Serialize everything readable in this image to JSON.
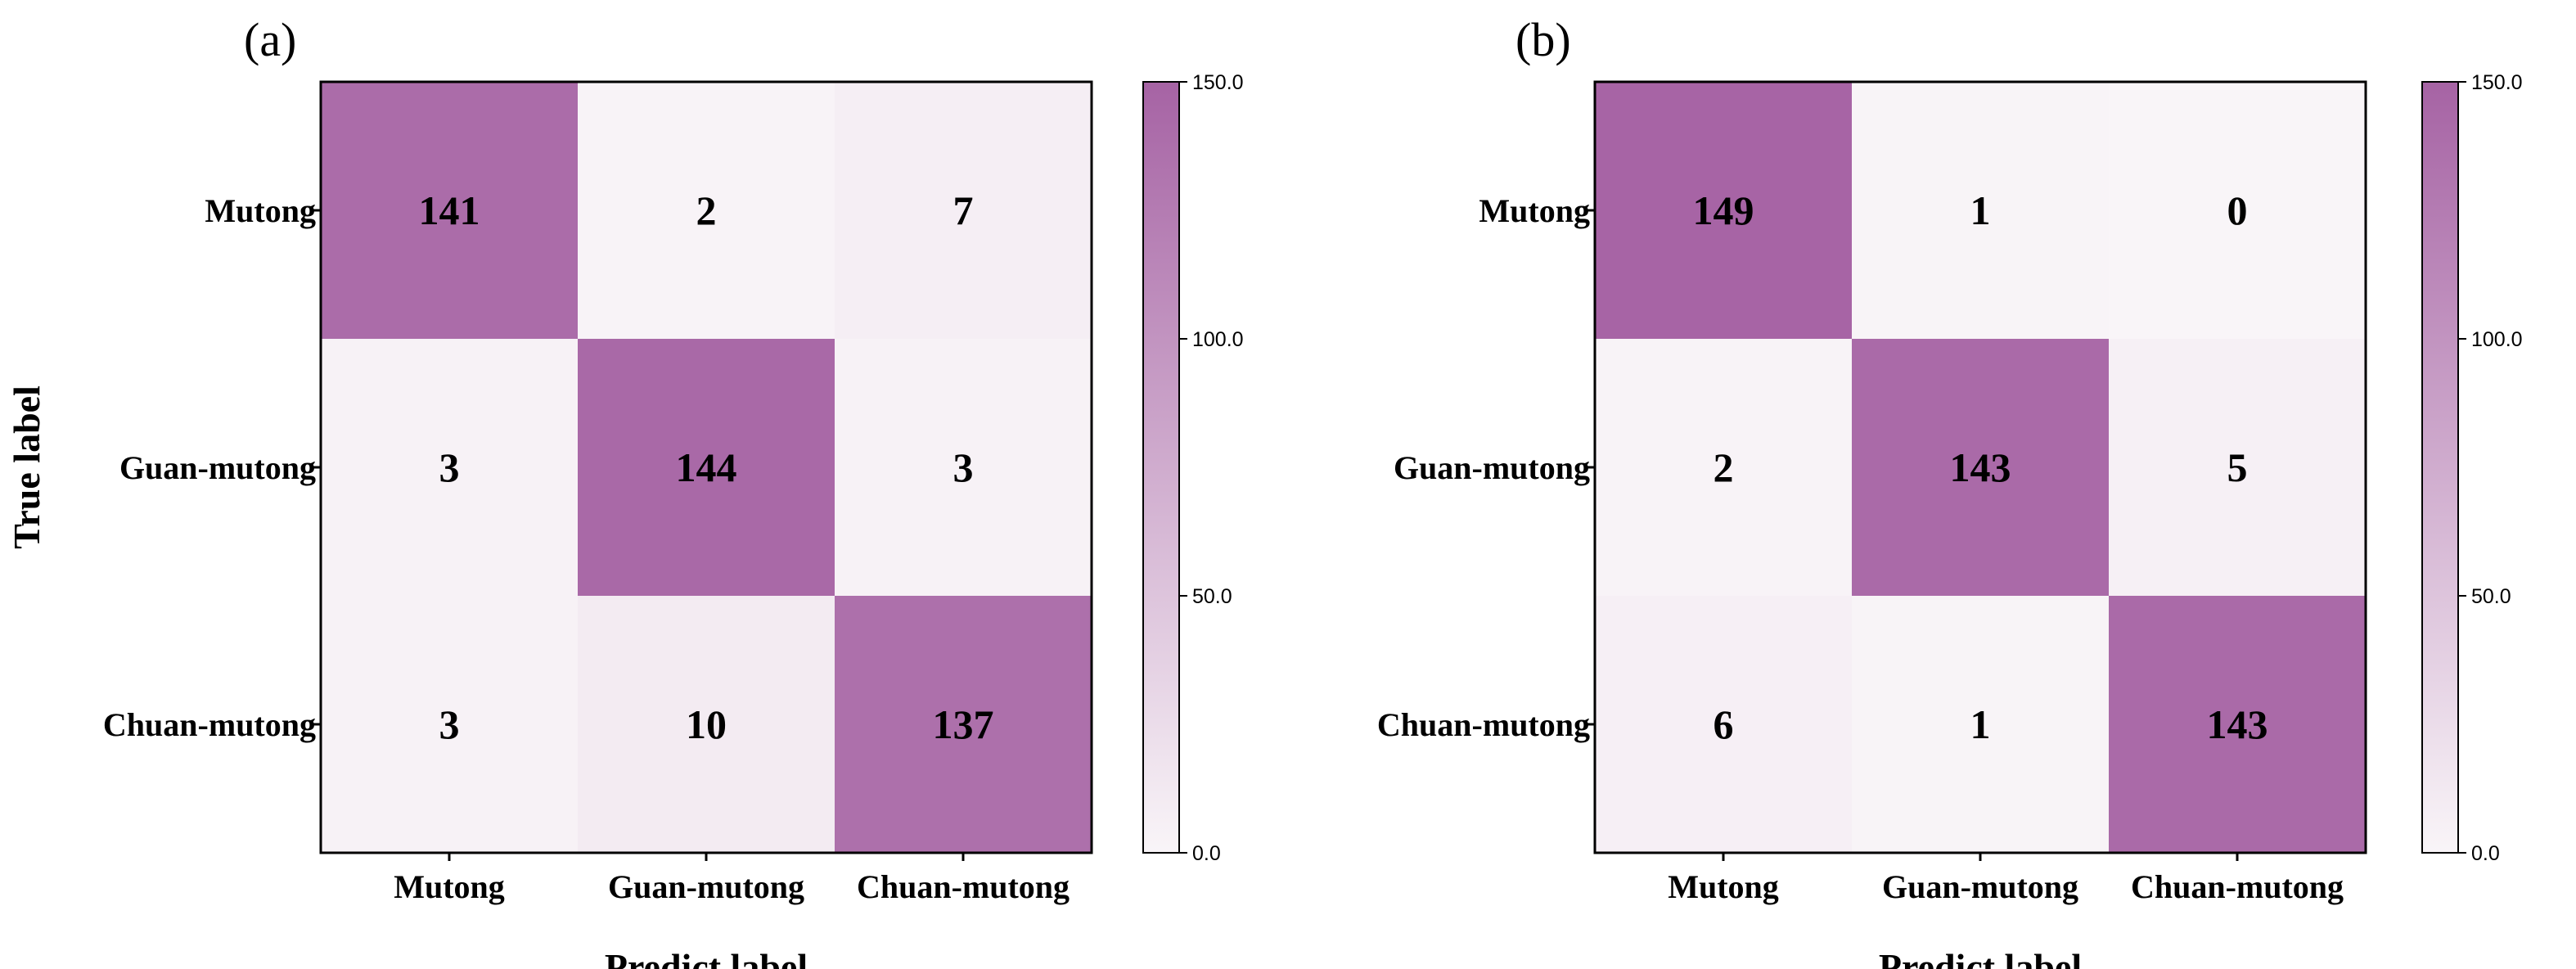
{
  "chart_data": [
    {
      "type": "heatmap",
      "panel_label": "(a)",
      "row_labels": [
        "Mutong",
        "Guan-mutong",
        "Chuan-mutong"
      ],
      "col_labels": [
        "Mutong",
        "Guan-mutong",
        "Chuan-mutong"
      ],
      "values": [
        [
          141,
          2,
          7
        ],
        [
          3,
          144,
          3
        ],
        [
          3,
          10,
          137
        ]
      ],
      "xlabel": "Predict label",
      "ylabel": "True label",
      "colorbar": {
        "range": [
          0,
          150
        ],
        "ticks": [
          "0.0",
          "50.0",
          "100.0",
          "150.0"
        ],
        "low_color": "#f9f5f8",
        "high_color": "#a663a4"
      }
    },
    {
      "type": "heatmap",
      "panel_label": "(b)",
      "row_labels": [
        "Mutong",
        "Guan-mutong",
        "Chuan-mutong"
      ],
      "col_labels": [
        "Mutong",
        "Guan-mutong",
        "Chuan-mutong"
      ],
      "values": [
        [
          149,
          1,
          0
        ],
        [
          2,
          143,
          5
        ],
        [
          6,
          1,
          143
        ]
      ],
      "xlabel": "Predict label",
      "ylabel": "",
      "colorbar": {
        "range": [
          0,
          150
        ],
        "ticks": [
          "0.0",
          "50.0",
          "100.0",
          "150.0"
        ],
        "low_color": "#f9f5f8",
        "high_color": "#a663a4"
      }
    }
  ]
}
